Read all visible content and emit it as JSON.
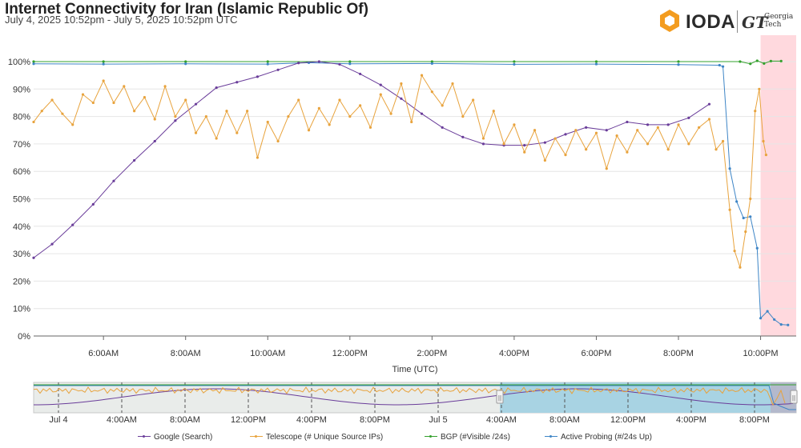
{
  "header": {
    "title": "Internet Connectivity for Iran (Islamic Republic Of)",
    "subtitle": "July 4, 2025 10:52pm - July 5, 2025 10:52pm UTC"
  },
  "logo": {
    "ioda": "IODA",
    "gt_mark": "GT",
    "gt_line1": "Georgia",
    "gt_line2": "Tech"
  },
  "colors": {
    "google": "#6a3d9a",
    "telescope": "#e8a33d",
    "bgp": "#33a02c",
    "active_probing": "#3e85c6",
    "outage_band": "#ffd9de"
  },
  "chart_data": {
    "type": "line",
    "title": "Internet Connectivity for Iran (Islamic Republic Of)",
    "subtitle": "July 4, 2025 10:52pm - July 5, 2025 10:52pm UTC",
    "xlabel": "Time (UTC)",
    "ylabel": "",
    "x_range": [
      "2025-07-05 04:18",
      "2025-07-05 22:52"
    ],
    "ylim": [
      0,
      100
    ],
    "y_ticks": [
      "0%",
      "10%",
      "20%",
      "30%",
      "40%",
      "50%",
      "60%",
      "70%",
      "80%",
      "90%",
      "100%"
    ],
    "x_ticks": [
      {
        "t": "2025-07-05 06:00",
        "label": "6:00AM"
      },
      {
        "t": "2025-07-05 08:00",
        "label": "8:00AM"
      },
      {
        "t": "2025-07-05 10:00",
        "label": "10:00AM"
      },
      {
        "t": "2025-07-05 12:00",
        "label": "12:00PM"
      },
      {
        "t": "2025-07-05 14:00",
        "label": "2:00PM"
      },
      {
        "t": "2025-07-05 16:00",
        "label": "4:00PM"
      },
      {
        "t": "2025-07-05 18:00",
        "label": "6:00PM"
      },
      {
        "t": "2025-07-05 20:00",
        "label": "8:00PM"
      },
      {
        "t": "2025-07-05 22:00",
        "label": "10:00PM"
      }
    ],
    "grid": true,
    "legend_position": "bottom",
    "outage_band": {
      "start": "2025-07-05 22:00",
      "end": "2025-07-05 22:52"
    },
    "series": [
      {
        "name": "Google (Search)",
        "color": "#6a3d9a",
        "points": [
          [
            "2025-07-05 04:18",
            28.5
          ],
          [
            "2025-07-05 04:45",
            33.5
          ],
          [
            "2025-07-05 05:15",
            40.5
          ],
          [
            "2025-07-05 05:45",
            48
          ],
          [
            "2025-07-05 06:15",
            56.5
          ],
          [
            "2025-07-05 06:45",
            64
          ],
          [
            "2025-07-05 07:15",
            71
          ],
          [
            "2025-07-05 07:45",
            78.5
          ],
          [
            "2025-07-05 08:15",
            84.5
          ],
          [
            "2025-07-05 08:45",
            90.5
          ],
          [
            "2025-07-05 09:15",
            92.5
          ],
          [
            "2025-07-05 09:45",
            94.5
          ],
          [
            "2025-07-05 10:15",
            97
          ],
          [
            "2025-07-05 10:45",
            99.5
          ],
          [
            "2025-07-05 11:15",
            100
          ],
          [
            "2025-07-05 11:45",
            99
          ],
          [
            "2025-07-05 12:15",
            95.5
          ],
          [
            "2025-07-05 12:45",
            91.5
          ],
          [
            "2025-07-05 13:15",
            86.5
          ],
          [
            "2025-07-05 13:45",
            81
          ],
          [
            "2025-07-05 14:15",
            76
          ],
          [
            "2025-07-05 14:45",
            72.5
          ],
          [
            "2025-07-05 15:15",
            70
          ],
          [
            "2025-07-05 15:45",
            69.5
          ],
          [
            "2025-07-05 16:15",
            69.5
          ],
          [
            "2025-07-05 16:45",
            70.5
          ],
          [
            "2025-07-05 17:15",
            73.5
          ],
          [
            "2025-07-05 17:45",
            76
          ],
          [
            "2025-07-05 18:15",
            75
          ],
          [
            "2025-07-05 18:45",
            78
          ],
          [
            "2025-07-05 19:15",
            77
          ],
          [
            "2025-07-05 19:45",
            77
          ],
          [
            "2025-07-05 20:15",
            79.5
          ],
          [
            "2025-07-05 20:45",
            84.5
          ]
        ]
      },
      {
        "name": "Telescope (# Unique Source IPs)",
        "color": "#e8a33d",
        "points": [
          [
            "2025-07-05 04:18",
            78
          ],
          [
            "2025-07-05 04:30",
            82
          ],
          [
            "2025-07-05 04:45",
            86
          ],
          [
            "2025-07-05 05:00",
            81
          ],
          [
            "2025-07-05 05:15",
            77
          ],
          [
            "2025-07-05 05:30",
            88
          ],
          [
            "2025-07-05 05:45",
            85
          ],
          [
            "2025-07-05 06:00",
            93
          ],
          [
            "2025-07-05 06:15",
            85
          ],
          [
            "2025-07-05 06:30",
            91
          ],
          [
            "2025-07-05 06:45",
            82
          ],
          [
            "2025-07-05 07:00",
            87
          ],
          [
            "2025-07-05 07:15",
            79
          ],
          [
            "2025-07-05 07:30",
            91
          ],
          [
            "2025-07-05 07:45",
            80
          ],
          [
            "2025-07-05 08:00",
            86
          ],
          [
            "2025-07-05 08:15",
            74
          ],
          [
            "2025-07-05 08:30",
            80
          ],
          [
            "2025-07-05 08:45",
            72
          ],
          [
            "2025-07-05 09:00",
            82
          ],
          [
            "2025-07-05 09:15",
            74
          ],
          [
            "2025-07-05 09:30",
            82
          ],
          [
            "2025-07-05 09:45",
            65
          ],
          [
            "2025-07-05 10:00",
            78
          ],
          [
            "2025-07-05 10:15",
            71
          ],
          [
            "2025-07-05 10:30",
            80
          ],
          [
            "2025-07-05 10:45",
            86
          ],
          [
            "2025-07-05 11:00",
            75
          ],
          [
            "2025-07-05 11:15",
            83
          ],
          [
            "2025-07-05 11:30",
            77
          ],
          [
            "2025-07-05 11:45",
            86
          ],
          [
            "2025-07-05 12:00",
            80
          ],
          [
            "2025-07-05 12:15",
            84
          ],
          [
            "2025-07-05 12:30",
            76
          ],
          [
            "2025-07-05 12:45",
            88
          ],
          [
            "2025-07-05 13:00",
            81
          ],
          [
            "2025-07-05 13:15",
            92
          ],
          [
            "2025-07-05 13:30",
            78
          ],
          [
            "2025-07-05 13:45",
            95
          ],
          [
            "2025-07-05 14:00",
            89
          ],
          [
            "2025-07-05 14:15",
            84
          ],
          [
            "2025-07-05 14:30",
            92
          ],
          [
            "2025-07-05 14:45",
            80
          ],
          [
            "2025-07-05 15:00",
            86
          ],
          [
            "2025-07-05 15:15",
            72
          ],
          [
            "2025-07-05 15:30",
            82
          ],
          [
            "2025-07-05 15:45",
            70
          ],
          [
            "2025-07-05 16:00",
            77
          ],
          [
            "2025-07-05 16:15",
            67
          ],
          [
            "2025-07-05 16:30",
            75
          ],
          [
            "2025-07-05 16:45",
            64
          ],
          [
            "2025-07-05 17:00",
            72
          ],
          [
            "2025-07-05 17:15",
            66
          ],
          [
            "2025-07-05 17:30",
            75
          ],
          [
            "2025-07-05 17:45",
            68
          ],
          [
            "2025-07-05 18:00",
            74
          ],
          [
            "2025-07-05 18:15",
            61
          ],
          [
            "2025-07-05 18:30",
            73
          ],
          [
            "2025-07-05 18:45",
            67
          ],
          [
            "2025-07-05 19:00",
            75
          ],
          [
            "2025-07-05 19:15",
            70
          ],
          [
            "2025-07-05 19:30",
            76
          ],
          [
            "2025-07-05 19:45",
            68
          ],
          [
            "2025-07-05 20:00",
            77
          ],
          [
            "2025-07-05 20:15",
            70
          ],
          [
            "2025-07-05 20:30",
            76
          ],
          [
            "2025-07-05 20:45",
            79
          ],
          [
            "2025-07-05 20:55",
            68
          ],
          [
            "2025-07-05 21:05",
            71
          ],
          [
            "2025-07-05 21:15",
            46
          ],
          [
            "2025-07-05 21:22",
            31
          ],
          [
            "2025-07-05 21:30",
            25
          ],
          [
            "2025-07-05 21:38",
            38
          ],
          [
            "2025-07-05 21:45",
            50
          ],
          [
            "2025-07-05 21:52",
            82
          ],
          [
            "2025-07-05 21:58",
            90
          ],
          [
            "2025-07-05 22:04",
            71
          ],
          [
            "2025-07-05 22:08",
            66
          ]
        ]
      },
      {
        "name": "BGP (#Visible /24s)",
        "color": "#33a02c",
        "points": [
          [
            "2025-07-05 04:18",
            100
          ],
          [
            "2025-07-05 06:00",
            100
          ],
          [
            "2025-07-05 08:00",
            100
          ],
          [
            "2025-07-05 10:00",
            100
          ],
          [
            "2025-07-05 12:00",
            100
          ],
          [
            "2025-07-05 14:00",
            100
          ],
          [
            "2025-07-05 16:00",
            100
          ],
          [
            "2025-07-05 18:00",
            100
          ],
          [
            "2025-07-05 20:00",
            100
          ],
          [
            "2025-07-05 21:30",
            100
          ],
          [
            "2025-07-05 21:45",
            99.2
          ],
          [
            "2025-07-05 21:55",
            100.3
          ],
          [
            "2025-07-05 22:05",
            99.3
          ],
          [
            "2025-07-05 22:15",
            100.2
          ],
          [
            "2025-07-05 22:30",
            100.2
          ]
        ]
      },
      {
        "name": "Active Probing (#/24s Up)",
        "color": "#3e85c6",
        "points": [
          [
            "2025-07-05 04:18",
            99.2
          ],
          [
            "2025-07-05 06:00",
            99.1
          ],
          [
            "2025-07-05 08:00",
            99.2
          ],
          [
            "2025-07-05 10:00",
            99.1
          ],
          [
            "2025-07-05 11:00",
            99.6
          ],
          [
            "2025-07-05 12:00",
            99.2
          ],
          [
            "2025-07-05 14:00",
            99.3
          ],
          [
            "2025-07-05 16:00",
            99.0
          ],
          [
            "2025-07-05 18:00",
            99.1
          ],
          [
            "2025-07-05 20:00",
            98.9
          ],
          [
            "2025-07-05 21:00",
            98.7
          ],
          [
            "2025-07-05 21:05",
            98.2
          ],
          [
            "2025-07-05 21:15",
            61
          ],
          [
            "2025-07-05 21:25",
            49
          ],
          [
            "2025-07-05 21:35",
            43
          ],
          [
            "2025-07-05 21:45",
            43.5
          ],
          [
            "2025-07-05 21:55",
            32
          ],
          [
            "2025-07-05 22:00",
            6.5
          ],
          [
            "2025-07-05 22:10",
            9
          ],
          [
            "2025-07-05 22:20",
            6
          ],
          [
            "2025-07-05 22:30",
            4.2
          ],
          [
            "2025-07-05 22:40",
            4
          ]
        ]
      }
    ]
  },
  "overview": {
    "labels": [
      {
        "label": "Jul 4",
        "t": "2025-07-04 23:52"
      },
      {
        "label": "4:00AM",
        "t": "2025-07-05 03:52"
      },
      {
        "label": "8:00AM",
        "t": "2025-07-05 07:52"
      },
      {
        "label": "12:00PM",
        "t": "2025-07-05 11:52"
      },
      {
        "label": "4:00PM",
        "t": "2025-07-05 15:52"
      },
      {
        "label": "8:00PM",
        "t": "2025-07-05 19:52"
      },
      {
        "label": "Jul 5",
        "t": "2025-07-05 23:52"
      },
      {
        "label": "4:00AM",
        "t": "2025-07-06 03:52"
      },
      {
        "label": "8:00AM",
        "t": "2025-07-06 07:52"
      },
      {
        "label": "12:00PM",
        "t": "2025-07-06 11:52"
      },
      {
        "label": "4:00PM",
        "t": "2025-07-06 15:52"
      },
      {
        "label": "8:00PM",
        "t": "2025-07-06 19:52"
      }
    ],
    "handle_glyph": "||"
  },
  "legend": {
    "items": [
      {
        "label": "Google (Search)",
        "color": "#6a3d9a"
      },
      {
        "label": "Telescope (# Unique Source IPs)",
        "color": "#e8a33d"
      },
      {
        "label": "BGP (#Visible /24s)",
        "color": "#33a02c"
      },
      {
        "label": "Active Probing (#/24s Up)",
        "color": "#3e85c6"
      }
    ]
  }
}
